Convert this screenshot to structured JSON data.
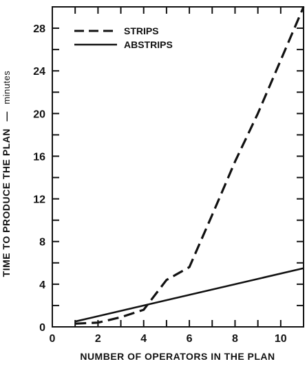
{
  "chart_data": {
    "type": "line",
    "title": "",
    "xlabel": "NUMBER OF OPERATORS IN THE PLAN",
    "ylabel": "TIME TO PRODUCE THE PLAN",
    "ylabel_unit": "minutes",
    "ylabel_separator": "—",
    "xlim": [
      0,
      11
    ],
    "ylim": [
      0,
      30
    ],
    "x_ticks": [
      0,
      2,
      4,
      6,
      8,
      10
    ],
    "y_ticks": [
      0,
      4,
      8,
      12,
      16,
      20,
      24,
      28
    ],
    "legend_position": "top-left",
    "grid": false,
    "series": [
      {
        "name": "STRIPS",
        "style": "dashed",
        "x": [
          1,
          2,
          3,
          4,
          5,
          6,
          7,
          8,
          9,
          10,
          11
        ],
        "y": [
          0.3,
          0.4,
          0.9,
          1.6,
          4.4,
          5.6,
          10.5,
          15.5,
          20,
          25,
          30
        ]
      },
      {
        "name": "ABSTRIPS",
        "style": "solid",
        "x": [
          1,
          11
        ],
        "y": [
          0.5,
          5.5
        ]
      }
    ]
  }
}
